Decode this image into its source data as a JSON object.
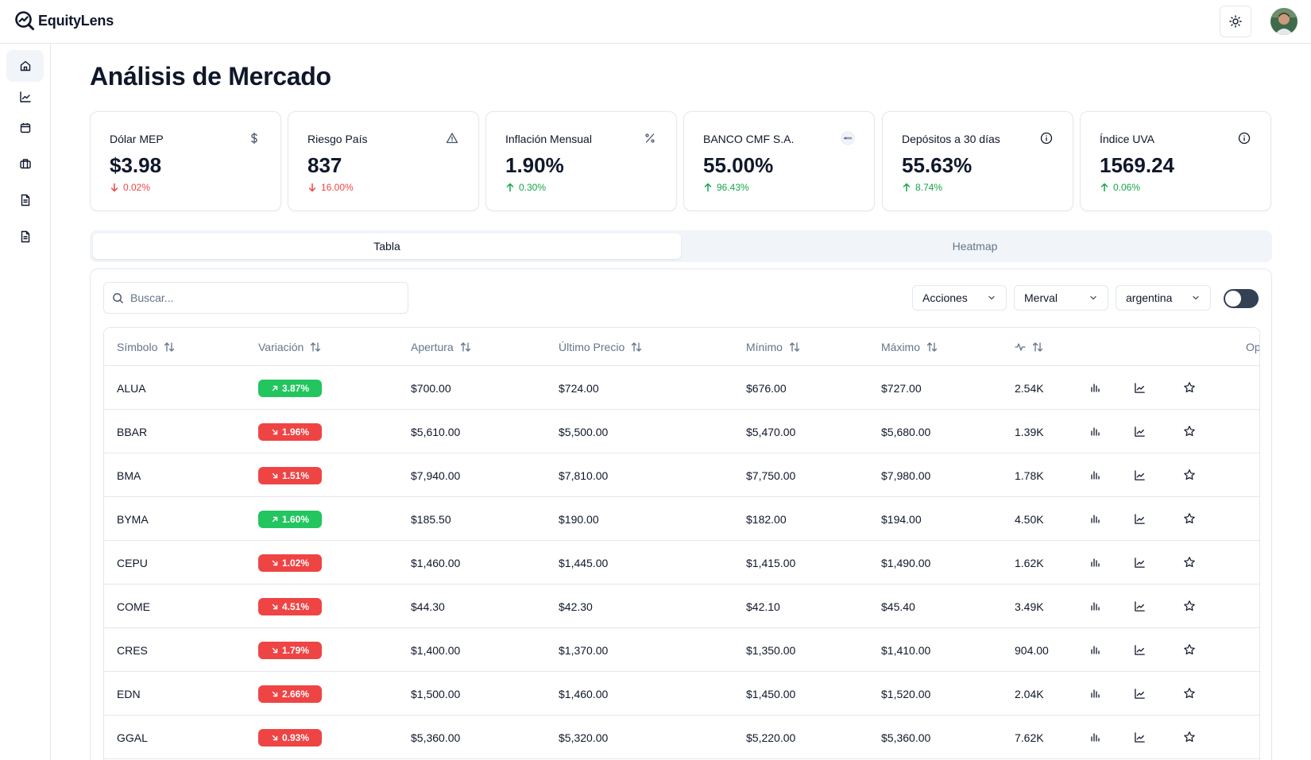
{
  "app": {
    "name": "EquityLens"
  },
  "header": {
    "theme_icon": "sun-icon",
    "avatar": "user-avatar"
  },
  "sidebar": {
    "items": [
      {
        "icon": "home-icon",
        "active": true
      },
      {
        "icon": "line-chart-icon",
        "active": false
      },
      {
        "icon": "calendar-icon",
        "active": false
      },
      {
        "icon": "briefcase-icon",
        "active": false
      },
      {
        "icon": "document-icon",
        "active": false
      },
      {
        "icon": "document-icon",
        "active": false
      }
    ]
  },
  "page": {
    "title": "Análisis de Mercado"
  },
  "cards": [
    {
      "label": "Dólar MEP",
      "icon": "dollar-icon",
      "value": "$3.98",
      "change": "0.02%",
      "direction": "down"
    },
    {
      "label": "Riesgo País",
      "icon": "warning-icon",
      "value": "837",
      "change": "16.00%",
      "direction": "down"
    },
    {
      "label": "Inflación Mensual",
      "icon": "percent-icon",
      "value": "1.90%",
      "change": "0.30%",
      "direction": "up"
    },
    {
      "label": "BANCO CMF S.A.",
      "icon": "bank-logo-icon",
      "value": "55.00%",
      "change": "96.43%",
      "direction": "up"
    },
    {
      "label": "Depósitos a 30 días",
      "icon": "info-icon",
      "value": "55.63%",
      "change": "8.74%",
      "direction": "up"
    },
    {
      "label": "Índice UVA",
      "icon": "info-icon",
      "value": "1569.24",
      "change": "0.06%",
      "direction": "up"
    }
  ],
  "tabs": [
    {
      "label": "Tabla",
      "active": true
    },
    {
      "label": "Heatmap",
      "active": false
    }
  ],
  "filters": {
    "search_placeholder": "Buscar...",
    "type": "Acciones",
    "index": "Merval",
    "country": "argentina",
    "toggle_on": false
  },
  "table": {
    "columns": [
      "Símbolo",
      "Variación",
      "Apertura",
      "Último Precio",
      "Mínimo",
      "Máximo",
      "",
      "Opciones"
    ],
    "volume_column_icon": "activity-icon",
    "rows": [
      {
        "symbol": "ALUA",
        "variation": "3.87%",
        "dir": "up",
        "open": "$700.00",
        "last": "$724.00",
        "min": "$676.00",
        "max": "$727.00",
        "volume": "2.54K"
      },
      {
        "symbol": "BBAR",
        "variation": "1.96%",
        "dir": "down",
        "open": "$5,610.00",
        "last": "$5,500.00",
        "min": "$5,470.00",
        "max": "$5,680.00",
        "volume": "1.39K"
      },
      {
        "symbol": "BMA",
        "variation": "1.51%",
        "dir": "down",
        "open": "$7,940.00",
        "last": "$7,810.00",
        "min": "$7,750.00",
        "max": "$7,980.00",
        "volume": "1.78K"
      },
      {
        "symbol": "BYMA",
        "variation": "1.60%",
        "dir": "up",
        "open": "$185.50",
        "last": "$190.00",
        "min": "$182.00",
        "max": "$194.00",
        "volume": "4.50K"
      },
      {
        "symbol": "CEPU",
        "variation": "1.02%",
        "dir": "down",
        "open": "$1,460.00",
        "last": "$1,445.00",
        "min": "$1,415.00",
        "max": "$1,490.00",
        "volume": "1.62K"
      },
      {
        "symbol": "COME",
        "variation": "4.51%",
        "dir": "down",
        "open": "$44.30",
        "last": "$42.30",
        "min": "$42.10",
        "max": "$45.40",
        "volume": "3.49K"
      },
      {
        "symbol": "CRES",
        "variation": "1.79%",
        "dir": "down",
        "open": "$1,400.00",
        "last": "$1,370.00",
        "min": "$1,350.00",
        "max": "$1,410.00",
        "volume": "904.00"
      },
      {
        "symbol": "EDN",
        "variation": "2.66%",
        "dir": "down",
        "open": "$1,500.00",
        "last": "$1,460.00",
        "min": "$1,450.00",
        "max": "$1,520.00",
        "volume": "2.04K"
      },
      {
        "symbol": "GGAL",
        "variation": "0.93%",
        "dir": "down",
        "open": "$5,360.00",
        "last": "$5,320.00",
        "min": "$5,220.00",
        "max": "$5,360.00",
        "volume": "7.62K"
      }
    ]
  },
  "colors": {
    "up": "#22c55e",
    "down": "#ef4444",
    "up_text": "#16a34a",
    "down_text": "#ef4444"
  }
}
